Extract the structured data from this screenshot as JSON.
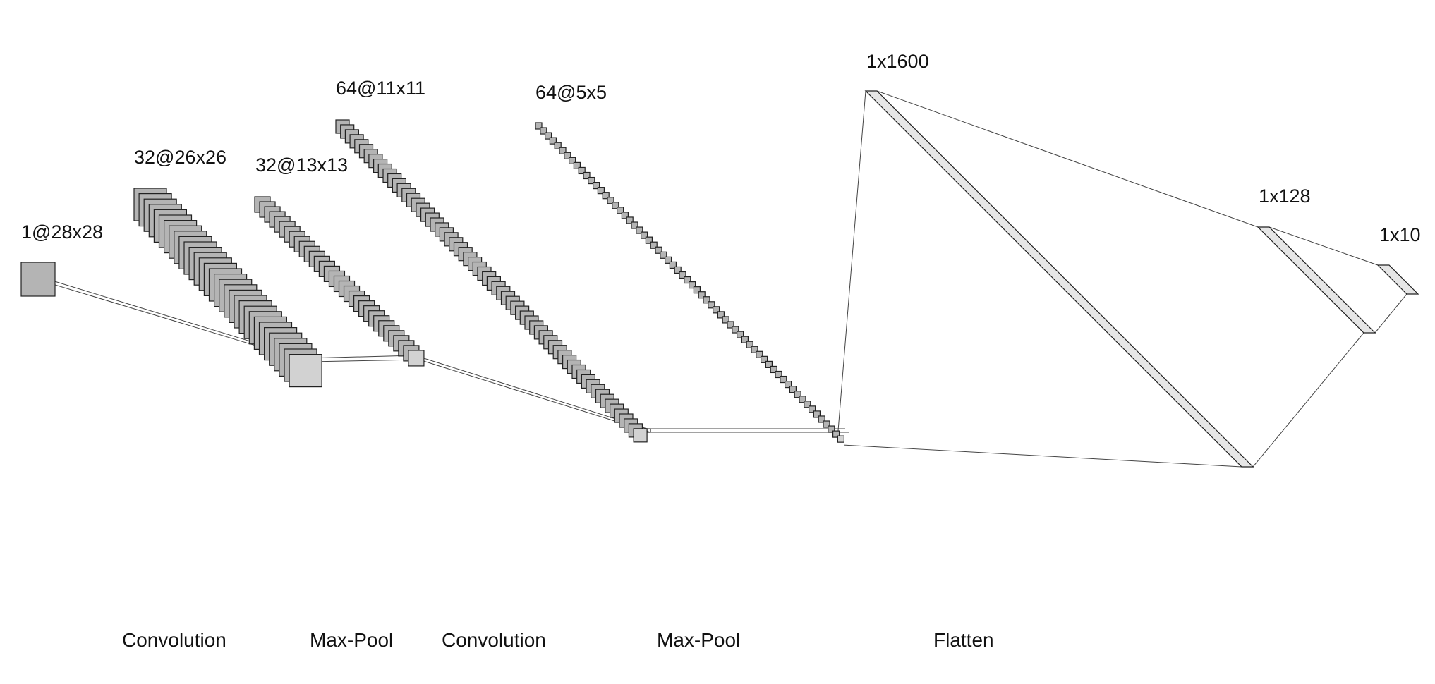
{
  "layers": [
    {
      "label": "1@28x28",
      "count": 1
    },
    {
      "label": "32@26x26",
      "count": 32
    },
    {
      "label": "32@13x13",
      "count": 32
    },
    {
      "label": "64@11x11",
      "count": 64
    },
    {
      "label": "64@5x5",
      "count": 64
    }
  ],
  "dense_layers": [
    {
      "label": "1x1600"
    },
    {
      "label": "1x128"
    },
    {
      "label": "1x10"
    }
  ],
  "operations": [
    "Convolution",
    "Max-Pool",
    "Convolution",
    "Max-Pool",
    "Flatten"
  ],
  "colors": {
    "map_fill": "#b4b4b4",
    "map_fill_last": "#d2d2d2",
    "dense_fill": "#e6e6e6",
    "stroke": "#222222",
    "edge": "#444444"
  }
}
